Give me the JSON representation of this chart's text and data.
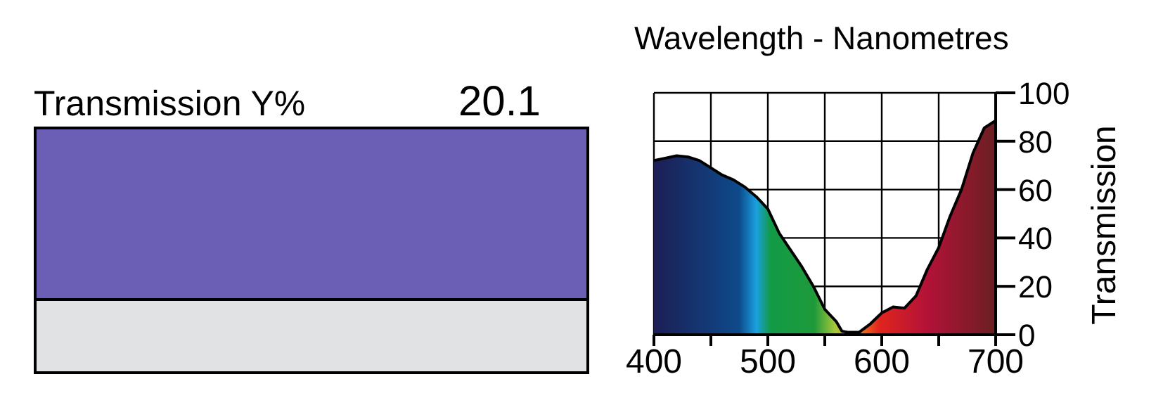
{
  "chart_data": {
    "type": "area",
    "xlabel": "Wavelength - Nanometres",
    "ylabel": "Transmission",
    "annotations": [
      "Transmission Y%",
      "20.1"
    ],
    "x": [
      400,
      410,
      420,
      430,
      440,
      450,
      460,
      470,
      480,
      490,
      500,
      505,
      510,
      520,
      530,
      540,
      550,
      560,
      565,
      570,
      580,
      590,
      600,
      610,
      620,
      630,
      640,
      650,
      660,
      670,
      680,
      690,
      700
    ],
    "series": [
      {
        "color": "#000000",
        "values": [
          72,
          73,
          74,
          73.5,
          72,
          69,
          66,
          64,
          61,
          57,
          52,
          47,
          42,
          35,
          28,
          20,
          10.5,
          5.5,
          1.5,
          1,
          1,
          4.5,
          9,
          11.5,
          11,
          16,
          27,
          36,
          49,
          60,
          75,
          85.5,
          88.5
        ]
      }
    ],
    "xlim": [
      400,
      700
    ],
    "xticks": [
      400,
      {
        "value": 450,
        "label": null
      },
      500,
      {
        "value": 550,
        "label": null
      },
      600,
      {
        "value": 650,
        "label": null
      },
      700
    ],
    "ylim": [
      0,
      100
    ],
    "yticks": [
      0,
      20,
      40,
      60,
      80,
      100
    ],
    "grid": true
  }
}
